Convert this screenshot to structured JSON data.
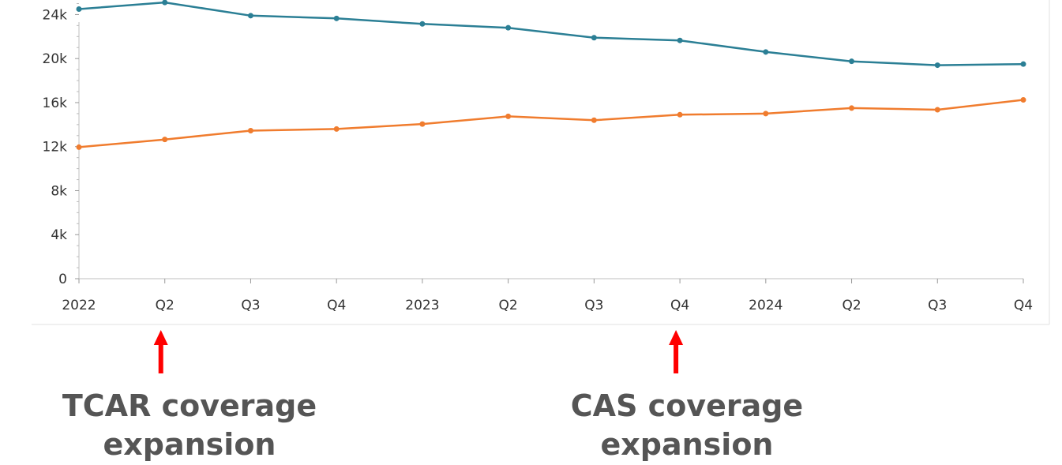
{
  "chart_data": {
    "type": "line",
    "x": [
      "2022",
      "Q2",
      "Q3",
      "Q4",
      "2023",
      "Q2",
      "Q3",
      "Q4",
      "2024",
      "Q2",
      "Q3",
      "Q4"
    ],
    "ylim": [
      0,
      25000
    ],
    "yticks": [
      0,
      4000,
      8000,
      12000,
      16000,
      20000,
      24000
    ],
    "ytick_labels": [
      "0",
      "4k",
      "8k",
      "12k",
      "16k",
      "20k",
      "24k"
    ],
    "grid": false,
    "series": [
      {
        "color": "#2b7f95",
        "values": [
          24500,
          25100,
          23900,
          23650,
          23150,
          22800,
          21900,
          21650,
          20600,
          19750,
          19400,
          19500
        ]
      },
      {
        "color": "#f07c2e",
        "values": [
          11950,
          12650,
          13450,
          13600,
          14050,
          14750,
          14400,
          14900,
          15000,
          15500,
          15350,
          16250
        ]
      }
    ],
    "annotations": [
      {
        "x_index": 1,
        "line1": "TCAR coverage",
        "line2": "expansion",
        "arrow_color": "#ff0000"
      },
      {
        "x_index": 7,
        "line1": "CAS coverage",
        "line2": "expansion",
        "arrow_color": "#ff0000"
      }
    ]
  }
}
